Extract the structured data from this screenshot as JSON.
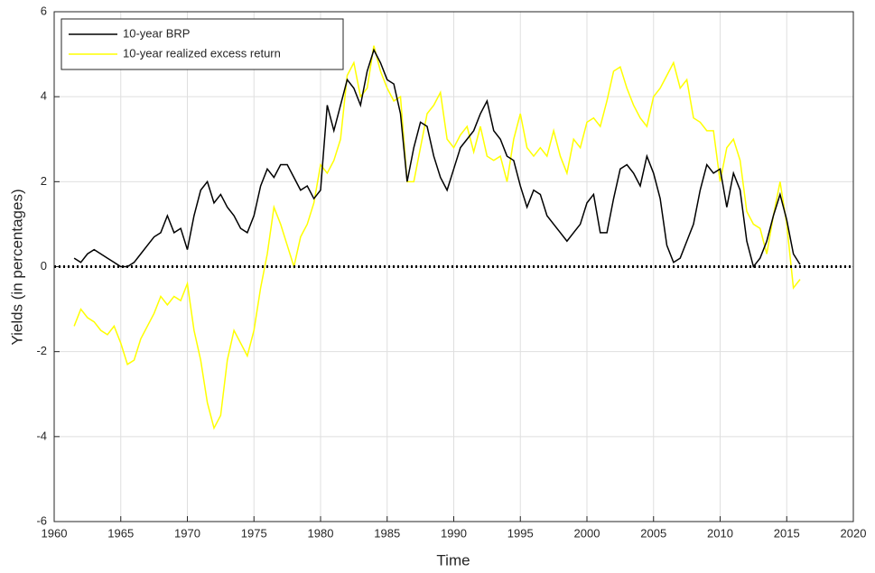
{
  "chart_data": {
    "type": "line",
    "xlabel": "Time",
    "ylabel": "Yields (in percentages)",
    "xlim": [
      1960,
      2020
    ],
    "xticks": [
      1960,
      1965,
      1970,
      1975,
      1980,
      1985,
      1990,
      1995,
      2000,
      2005,
      2010,
      2015,
      2020
    ],
    "ylim": [
      -6,
      6
    ],
    "yticks": [
      -6,
      -4,
      -2,
      0,
      2,
      4,
      6
    ],
    "grid": true,
    "legend": "upper-left",
    "reference_line": 0,
    "x": [
      1961.5,
      1962,
      1962.5,
      1963,
      1963.5,
      1964,
      1964.5,
      1965,
      1965.5,
      1966,
      1966.5,
      1967,
      1967.5,
      1968,
      1968.5,
      1969,
      1969.5,
      1970,
      1970.5,
      1971,
      1971.5,
      1972,
      1972.5,
      1973,
      1973.5,
      1974,
      1974.5,
      1975,
      1975.5,
      1976,
      1976.5,
      1977,
      1977.5,
      1978,
      1978.5,
      1979,
      1979.5,
      1980,
      1980.5,
      1981,
      1981.5,
      1982,
      1982.5,
      1983,
      1983.5,
      1984,
      1984.5,
      1985,
      1985.5,
      1986,
      1986.5,
      1987,
      1987.5,
      1988,
      1988.5,
      1989,
      1989.5,
      1990,
      1990.5,
      1991,
      1991.5,
      1992,
      1992.5,
      1993,
      1993.5,
      1994,
      1994.5,
      1995,
      1995.5,
      1996,
      1996.5,
      1997,
      1997.5,
      1998,
      1998.5,
      1999,
      1999.5,
      2000,
      2000.5,
      2001,
      2001.5,
      2002,
      2002.5,
      2003,
      2003.5,
      2004,
      2004.5,
      2005,
      2005.5,
      2006,
      2006.5,
      2007,
      2007.5,
      2008,
      2008.5,
      2009,
      2009.5,
      2010,
      2010.5,
      2011,
      2011.5,
      2012,
      2012.5,
      2013,
      2013.5,
      2014,
      2014.5,
      2015,
      2015.5,
      2016
    ],
    "series": [
      {
        "name": "10-year BRP",
        "color": "#000000",
        "values": [
          0.2,
          0.1,
          0.3,
          0.4,
          0.3,
          0.2,
          0.1,
          0.0,
          0.0,
          0.1,
          0.3,
          0.5,
          0.7,
          0.8,
          1.2,
          0.8,
          0.9,
          0.4,
          1.2,
          1.8,
          2.0,
          1.5,
          1.7,
          1.4,
          1.2,
          0.9,
          0.8,
          1.2,
          1.9,
          2.3,
          2.1,
          2.4,
          2.4,
          2.1,
          1.8,
          1.9,
          1.6,
          1.8,
          3.8,
          3.2,
          3.8,
          4.4,
          4.2,
          3.8,
          4.6,
          5.1,
          4.8,
          4.4,
          4.3,
          3.6,
          2.0,
          2.8,
          3.4,
          3.3,
          2.6,
          2.1,
          1.8,
          2.3,
          2.8,
          3.0,
          3.2,
          3.6,
          3.9,
          3.2,
          3.0,
          2.6,
          2.5,
          1.9,
          1.4,
          1.8,
          1.7,
          1.2,
          1.0,
          0.8,
          0.6,
          0.8,
          1.0,
          1.5,
          1.7,
          0.8,
          0.8,
          1.6,
          2.3,
          2.4,
          2.2,
          1.9,
          2.6,
          2.2,
          1.6,
          0.5,
          0.1,
          0.2,
          0.6,
          1.0,
          1.8,
          2.4,
          2.2,
          2.3,
          1.4,
          2.2,
          1.8,
          0.6,
          0.0,
          0.2,
          0.6,
          1.2,
          1.7,
          1.1,
          0.3,
          0.05
        ]
      },
      {
        "name": "10-year realized excess return",
        "color": "#ffff00",
        "values": [
          -1.4,
          -1.0,
          -1.2,
          -1.3,
          -1.5,
          -1.6,
          -1.4,
          -1.8,
          -2.3,
          -2.2,
          -1.7,
          -1.4,
          -1.1,
          -0.7,
          -0.9,
          -0.7,
          -0.8,
          -0.4,
          -1.5,
          -2.2,
          -3.2,
          -3.8,
          -3.5,
          -2.2,
          -1.5,
          -1.8,
          -2.1,
          -1.5,
          -0.5,
          0.3,
          1.4,
          1.0,
          0.5,
          0.0,
          0.7,
          1.0,
          1.5,
          2.4,
          2.2,
          2.5,
          3.0,
          4.5,
          4.8,
          4.0,
          4.2,
          5.2,
          4.6,
          4.2,
          3.9,
          4.0,
          2.0,
          2.0,
          2.8,
          3.6,
          3.8,
          4.1,
          3.0,
          2.8,
          3.1,
          3.3,
          2.7,
          3.3,
          2.6,
          2.5,
          2.6,
          2.0,
          3.0,
          3.6,
          2.8,
          2.6,
          2.8,
          2.6,
          3.2,
          2.6,
          2.2,
          3.0,
          2.8,
          3.4,
          3.5,
          3.3,
          3.9,
          4.6,
          4.7,
          4.2,
          3.8,
          3.5,
          3.3,
          4.0,
          4.2,
          4.5,
          4.8,
          4.2,
          4.4,
          3.5,
          3.4,
          3.2,
          3.2,
          2.0,
          2.8,
          3.0,
          2.5,
          1.3,
          1.0,
          0.9,
          0.3,
          1.2,
          2.0,
          1.0,
          -0.5,
          -0.3
        ]
      }
    ]
  }
}
